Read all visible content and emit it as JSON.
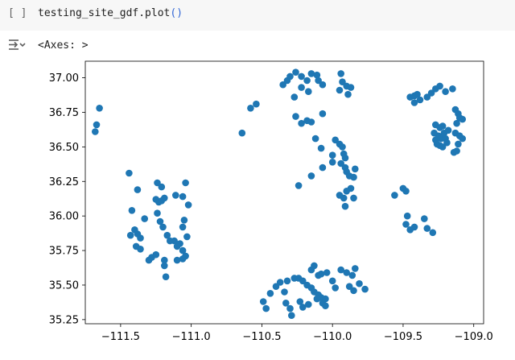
{
  "cell": {
    "run_indicator": "[ ]",
    "code_prefix": "testing_site_gdf.plot",
    "code_parens": "()"
  },
  "output": {
    "toggle_icon": "output-collapse-icon",
    "repr_text": "<Axes: >"
  },
  "colors": {
    "points": "#1f77b4",
    "cell_bg": "#f7f7f7"
  },
  "chart_data": {
    "type": "scatter",
    "xlim": [
      -111.75,
      -108.93
    ],
    "ylim": [
      35.22,
      37.12
    ],
    "xticks": [
      -111.5,
      -111.0,
      -110.5,
      -110.0,
      -109.5,
      -109.0
    ],
    "xtick_labels": [
      "−111.5",
      "−111.0",
      "−110.5",
      "−110.0",
      "−109.5",
      "−109.0"
    ],
    "yticks": [
      35.25,
      35.5,
      35.75,
      36.0,
      36.25,
      36.5,
      36.75,
      37.0
    ],
    "ytick_labels": [
      "35.25",
      "35.50",
      "35.75",
      "36.00",
      "36.25",
      "36.50",
      "36.75",
      "37.00"
    ],
    "grid": false,
    "points": [
      [
        -111.65,
        36.78
      ],
      [
        -111.67,
        36.66
      ],
      [
        -111.68,
        36.61
      ],
      [
        -111.44,
        36.31
      ],
      [
        -111.38,
        36.19
      ],
      [
        -111.42,
        36.04
      ],
      [
        -111.43,
        35.86
      ],
      [
        -111.4,
        35.9
      ],
      [
        -111.38,
        35.87
      ],
      [
        -111.36,
        35.84
      ],
      [
        -111.39,
        35.78
      ],
      [
        -111.36,
        35.76
      ],
      [
        -111.33,
        35.98
      ],
      [
        -111.24,
        36.24
      ],
      [
        -111.21,
        36.21
      ],
      [
        -111.25,
        36.12
      ],
      [
        -111.23,
        36.1
      ],
      [
        -111.21,
        36.11
      ],
      [
        -111.19,
        36.13
      ],
      [
        -111.24,
        36.02
      ],
      [
        -111.22,
        35.96
      ],
      [
        -111.2,
        35.92
      ],
      [
        -111.17,
        35.86
      ],
      [
        -111.15,
        35.82
      ],
      [
        -111.12,
        35.82
      ],
      [
        -111.1,
        35.78
      ],
      [
        -111.08,
        35.8
      ],
      [
        -111.06,
        35.75
      ],
      [
        -111.04,
        35.71
      ],
      [
        -111.06,
        35.69
      ],
      [
        -111.11,
        36.15
      ],
      [
        -111.06,
        36.14
      ],
      [
        -111.04,
        36.24
      ],
      [
        -111.02,
        36.08
      ],
      [
        -111.05,
        35.97
      ],
      [
        -111.06,
        35.92
      ],
      [
        -111.03,
        35.85
      ],
      [
        -111.28,
        35.7
      ],
      [
        -111.3,
        35.68
      ],
      [
        -111.25,
        35.72
      ],
      [
        -111.19,
        35.68
      ],
      [
        -111.1,
        35.68
      ],
      [
        -111.19,
        35.64
      ],
      [
        -111.18,
        35.56
      ],
      [
        -110.64,
        36.6
      ],
      [
        -110.58,
        36.78
      ],
      [
        -110.54,
        36.81
      ],
      [
        -110.35,
        36.95
      ],
      [
        -110.32,
        36.98
      ],
      [
        -110.3,
        37.01
      ],
      [
        -110.26,
        37.04
      ],
      [
        -110.22,
        37.01
      ],
      [
        -110.18,
        36.98
      ],
      [
        -110.15,
        37.03
      ],
      [
        -110.11,
        37.02
      ],
      [
        -110.1,
        36.98
      ],
      [
        -110.07,
        36.95
      ],
      [
        -110.22,
        36.93
      ],
      [
        -110.17,
        36.9
      ],
      [
        -110.27,
        36.86
      ],
      [
        -110.26,
        36.72
      ],
      [
        -110.22,
        36.67
      ],
      [
        -110.18,
        36.69
      ],
      [
        -110.15,
        36.68
      ],
      [
        -110.07,
        36.74
      ],
      [
        -109.94,
        37.03
      ],
      [
        -109.93,
        36.97
      ],
      [
        -109.9,
        36.94
      ],
      [
        -109.95,
        36.91
      ],
      [
        -109.87,
        36.93
      ],
      [
        -109.89,
        36.88
      ],
      [
        -110.12,
        36.56
      ],
      [
        -110.08,
        36.49
      ],
      [
        -110.0,
        36.44
      ],
      [
        -109.98,
        36.55
      ],
      [
        -109.95,
        36.52
      ],
      [
        -110.0,
        36.39
      ],
      [
        -110.07,
        36.35
      ],
      [
        -110.15,
        36.29
      ],
      [
        -110.24,
        36.22
      ],
      [
        -109.93,
        36.5
      ],
      [
        -109.92,
        36.45
      ],
      [
        -109.91,
        36.42
      ],
      [
        -109.94,
        36.38
      ],
      [
        -109.91,
        36.35
      ],
      [
        -109.9,
        36.32
      ],
      [
        -109.88,
        36.29
      ],
      [
        -109.85,
        36.28
      ],
      [
        -109.84,
        36.34
      ],
      [
        -109.87,
        36.2
      ],
      [
        -109.9,
        36.18
      ],
      [
        -109.92,
        36.13
      ],
      [
        -109.91,
        36.07
      ],
      [
        -109.95,
        36.15
      ],
      [
        -109.85,
        36.13
      ],
      [
        -109.56,
        36.15
      ],
      [
        -109.5,
        36.2
      ],
      [
        -109.48,
        36.18
      ],
      [
        -109.47,
        36.0
      ],
      [
        -109.48,
        35.94
      ],
      [
        -109.45,
        35.9
      ],
      [
        -109.42,
        35.92
      ],
      [
        -109.35,
        35.98
      ],
      [
        -109.33,
        35.91
      ],
      [
        -109.29,
        35.88
      ],
      [
        -109.45,
        36.86
      ],
      [
        -109.42,
        36.87
      ],
      [
        -109.4,
        36.88
      ],
      [
        -109.38,
        36.84
      ],
      [
        -109.42,
        36.82
      ],
      [
        -109.33,
        36.86
      ],
      [
        -109.3,
        36.89
      ],
      [
        -109.27,
        36.92
      ],
      [
        -109.24,
        36.94
      ],
      [
        -109.2,
        36.9
      ],
      [
        -109.15,
        36.92
      ],
      [
        -109.13,
        36.77
      ],
      [
        -109.11,
        36.74
      ],
      [
        -109.1,
        36.71
      ],
      [
        -109.08,
        36.7
      ],
      [
        -109.12,
        36.67
      ],
      [
        -109.27,
        36.66
      ],
      [
        -109.24,
        36.64
      ],
      [
        -109.22,
        36.65
      ],
      [
        -109.25,
        36.58
      ],
      [
        -109.23,
        36.56
      ],
      [
        -109.21,
        36.6
      ],
      [
        -109.2,
        36.56
      ],
      [
        -109.27,
        36.55
      ],
      [
        -109.26,
        36.52
      ],
      [
        -109.24,
        36.51
      ],
      [
        -109.22,
        36.5
      ],
      [
        -109.19,
        36.53
      ],
      [
        -109.28,
        36.6
      ],
      [
        -109.18,
        36.62
      ],
      [
        -109.13,
        36.6
      ],
      [
        -109.1,
        36.58
      ],
      [
        -109.08,
        36.56
      ],
      [
        -109.11,
        36.52
      ],
      [
        -109.12,
        36.47
      ],
      [
        -109.14,
        36.46
      ],
      [
        -110.49,
        35.38
      ],
      [
        -110.47,
        35.33
      ],
      [
        -110.44,
        35.44
      ],
      [
        -110.4,
        35.49
      ],
      [
        -110.37,
        35.52
      ],
      [
        -110.34,
        35.45
      ],
      [
        -110.33,
        35.37
      ],
      [
        -110.3,
        35.33
      ],
      [
        -110.29,
        35.28
      ],
      [
        -110.32,
        35.53
      ],
      [
        -110.27,
        35.55
      ],
      [
        -110.24,
        35.55
      ],
      [
        -110.21,
        35.53
      ],
      [
        -110.18,
        35.5
      ],
      [
        -110.15,
        35.48
      ],
      [
        -110.13,
        35.45
      ],
      [
        -110.1,
        35.43
      ],
      [
        -110.08,
        35.41
      ],
      [
        -110.11,
        35.4
      ],
      [
        -110.23,
        35.38
      ],
      [
        -110.21,
        35.34
      ],
      [
        -110.17,
        35.36
      ],
      [
        -110.07,
        35.37
      ],
      [
        -110.05,
        35.4
      ],
      [
        -110.05,
        35.35
      ],
      [
        -110.1,
        35.57
      ],
      [
        -110.15,
        35.61
      ],
      [
        -110.13,
        35.64
      ],
      [
        -110.08,
        35.58
      ],
      [
        -110.04,
        35.59
      ],
      [
        -110.0,
        35.53
      ],
      [
        -109.98,
        35.48
      ],
      [
        -109.94,
        35.61
      ],
      [
        -109.9,
        35.59
      ],
      [
        -109.86,
        35.57
      ],
      [
        -109.84,
        35.62
      ],
      [
        -109.88,
        35.49
      ],
      [
        -109.85,
        35.46
      ],
      [
        -109.81,
        35.51
      ],
      [
        -109.77,
        35.47
      ]
    ]
  }
}
